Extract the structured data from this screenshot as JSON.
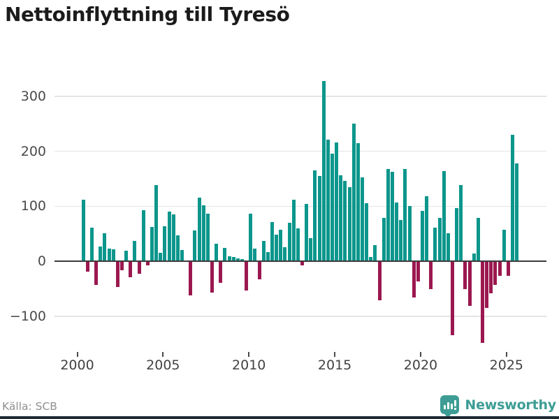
{
  "title": "Nettoinflyttning till Tyresö",
  "source": "Källa: SCB",
  "logo": {
    "text": "Newsworthy"
  },
  "colors": {
    "positive": "#0c968c",
    "negative": "#9b184f",
    "logo": "#3d9d95",
    "bottom_bar": "#1c2b33"
  },
  "chart_data": {
    "type": "bar",
    "title": "Nettoinflyttning till Tyresö",
    "frequency": "quarterly",
    "grid": true,
    "legend": false,
    "ylim": [
      -160,
      345
    ],
    "yticks": [
      {
        "label": "300",
        "value": 300
      },
      {
        "label": "200",
        "value": 200
      },
      {
        "label": "100",
        "value": 100
      },
      {
        "label": "0",
        "value": 0
      },
      {
        "label": "−100",
        "value": -100
      }
    ],
    "xticks": [
      {
        "label": "2000",
        "value": 2000
      },
      {
        "label": "2005",
        "value": 2005
      },
      {
        "label": "2010",
        "value": 2010
      },
      {
        "label": "2015",
        "value": 2015
      },
      {
        "label": "2020",
        "value": 2020
      },
      {
        "label": "2025",
        "value": 2025
      }
    ],
    "x": [
      "2000Q2",
      "2000Q3",
      "2000Q4",
      "2001Q1",
      "2001Q2",
      "2001Q3",
      "2001Q4",
      "2002Q1",
      "2002Q2",
      "2002Q3",
      "2002Q4",
      "2003Q1",
      "2003Q2",
      "2003Q3",
      "2003Q4",
      "2004Q1",
      "2004Q2",
      "2004Q3",
      "2004Q4",
      "2005Q1",
      "2005Q2",
      "2005Q3",
      "2005Q4",
      "2006Q1",
      "2006Q2",
      "2006Q3",
      "2006Q4",
      "2007Q1",
      "2007Q2",
      "2007Q3",
      "2007Q4",
      "2008Q1",
      "2008Q2",
      "2008Q3",
      "2008Q4",
      "2009Q1",
      "2009Q2",
      "2009Q3",
      "2009Q4",
      "2010Q1",
      "2010Q2",
      "2010Q3",
      "2010Q4",
      "2011Q1",
      "2011Q2",
      "2011Q3",
      "2011Q4",
      "2012Q1",
      "2012Q2",
      "2012Q3",
      "2012Q4",
      "2013Q1",
      "2013Q2",
      "2013Q3",
      "2013Q4",
      "2014Q1",
      "2014Q2",
      "2014Q3",
      "2014Q4",
      "2015Q1",
      "2015Q2",
      "2015Q3",
      "2015Q4",
      "2016Q1",
      "2016Q2",
      "2016Q3",
      "2016Q4",
      "2017Q1",
      "2017Q2",
      "2017Q3",
      "2017Q4",
      "2018Q1",
      "2018Q2",
      "2018Q3",
      "2018Q4",
      "2019Q1",
      "2019Q2",
      "2019Q3",
      "2019Q4",
      "2020Q1",
      "2020Q2",
      "2020Q3",
      "2020Q4",
      "2021Q1",
      "2021Q2",
      "2021Q3",
      "2021Q4",
      "2022Q1",
      "2022Q2",
      "2022Q3",
      "2022Q4",
      "2023Q1",
      "2023Q2",
      "2023Q3",
      "2023Q4",
      "2024Q1",
      "2024Q2",
      "2024Q3",
      "2024Q4",
      "2025Q1",
      "2025Q2",
      "2025Q3"
    ],
    "values": [
      112,
      -18,
      61,
      -41,
      27,
      51,
      23,
      22,
      -45,
      -15,
      19,
      -27,
      37,
      -21,
      93,
      -6,
      62,
      139,
      15,
      64,
      90,
      85,
      47,
      20,
      0,
      -60,
      56,
      115,
      101,
      86,
      -55,
      32,
      -38,
      24,
      9,
      7,
      5,
      4,
      -52,
      86,
      23,
      -31,
      37,
      17,
      71,
      48,
      57,
      25,
      70,
      112,
      60,
      -6,
      104,
      42,
      165,
      155,
      327,
      221,
      195,
      216,
      156,
      146,
      135,
      250,
      215,
      153,
      106,
      7,
      29,
      -69,
      79,
      168,
      162,
      107,
      75,
      168,
      100,
      -65,
      -35,
      91,
      118,
      -49,
      61,
      79,
      164,
      51,
      -133,
      96,
      139,
      -49,
      -79,
      14,
      79,
      -147,
      -84,
      -57,
      -42,
      -25,
      57,
      -25,
      230,
      178
    ]
  }
}
